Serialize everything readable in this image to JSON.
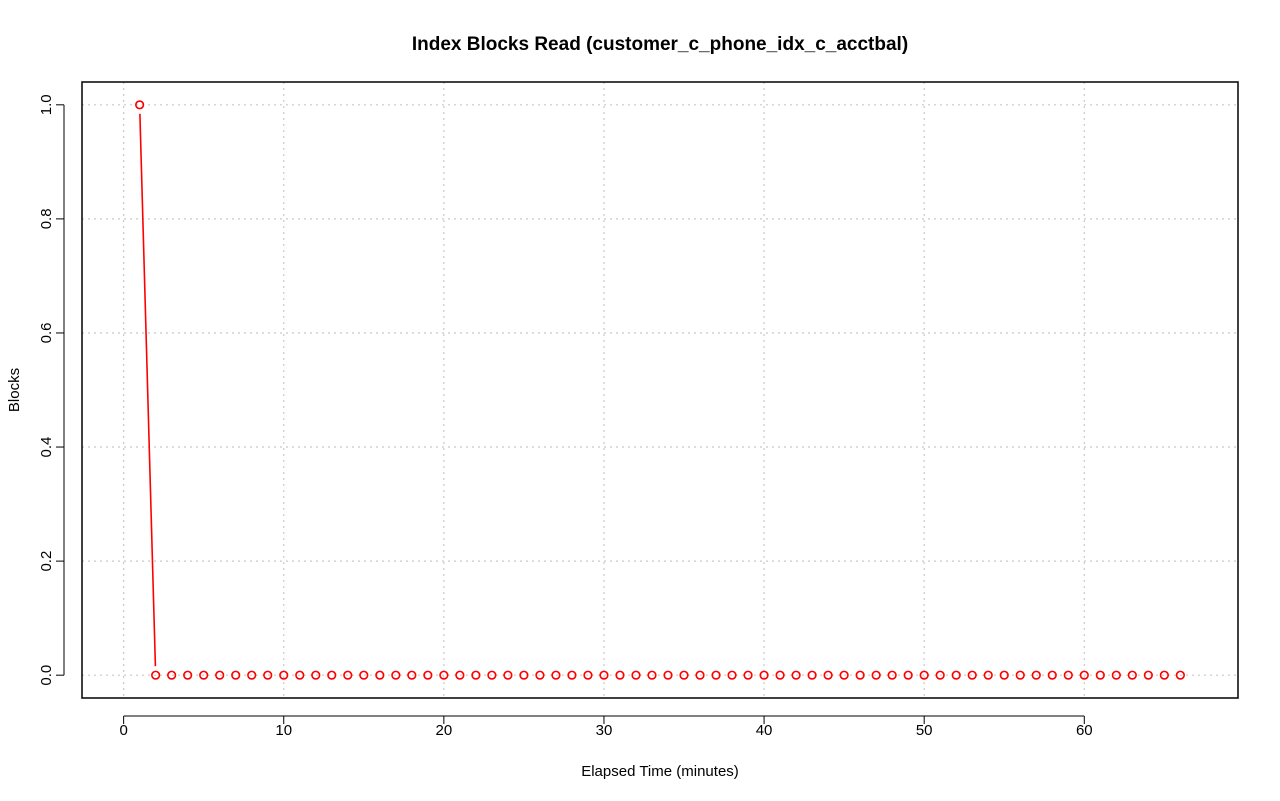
{
  "chart_data": {
    "type": "line",
    "title": "Index Blocks Read (customer_c_phone_idx_c_acctbal)",
    "xlabel": "Elapsed Time (minutes)",
    "ylabel": "Blocks",
    "xlim": [
      -2.6,
      69.6
    ],
    "ylim": [
      -0.04,
      1.04
    ],
    "x_ticks": [
      0,
      10,
      20,
      30,
      40,
      50,
      60
    ],
    "y_ticks": [
      0.0,
      0.2,
      0.4,
      0.6,
      0.8,
      1.0
    ],
    "x_tick_labels": [
      "0",
      "10",
      "20",
      "30",
      "40",
      "50",
      "60"
    ],
    "y_tick_labels": [
      "0.0",
      "0.2",
      "0.4",
      "0.6",
      "0.8",
      "1.0"
    ],
    "grid": true,
    "series": [
      {
        "color": "#ff0000",
        "marker": "open-circle",
        "x": [
          1,
          2,
          3,
          4,
          5,
          6,
          7,
          8,
          9,
          10,
          11,
          12,
          13,
          14,
          15,
          16,
          17,
          18,
          19,
          20,
          21,
          22,
          23,
          24,
          25,
          26,
          27,
          28,
          29,
          30,
          31,
          32,
          33,
          34,
          35,
          36,
          37,
          38,
          39,
          40,
          41,
          42,
          43,
          44,
          45,
          46,
          47,
          48,
          49,
          50,
          51,
          52,
          53,
          54,
          55,
          56,
          57,
          58,
          59,
          60,
          61,
          62,
          63,
          64,
          65,
          66
        ],
        "values": [
          1,
          0,
          0,
          0,
          0,
          0,
          0,
          0,
          0,
          0,
          0,
          0,
          0,
          0,
          0,
          0,
          0,
          0,
          0,
          0,
          0,
          0,
          0,
          0,
          0,
          0,
          0,
          0,
          0,
          0,
          0,
          0,
          0,
          0,
          0,
          0,
          0,
          0,
          0,
          0,
          0,
          0,
          0,
          0,
          0,
          0,
          0,
          0,
          0,
          0,
          0,
          0,
          0,
          0,
          0,
          0,
          0,
          0,
          0,
          0,
          0,
          0,
          0,
          0,
          0,
          0
        ]
      }
    ]
  }
}
